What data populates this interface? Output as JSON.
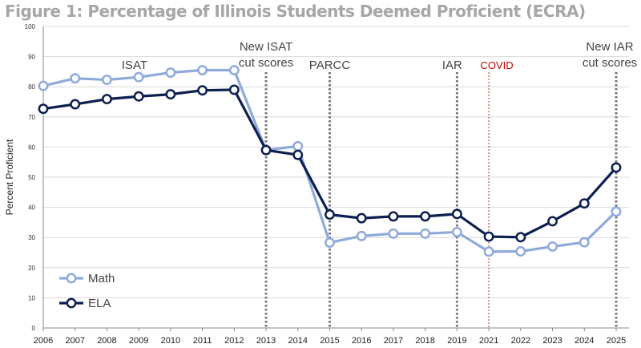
{
  "chart_data": {
    "type": "line",
    "title": "Figure 1: Percentage of Illinois Students Deemed Proficient (ECRA)",
    "xlabel": "",
    "ylabel": "Percent Proficient",
    "ylim": [
      0,
      100
    ],
    "yticks": [
      "0",
      "10",
      "20",
      "30",
      "40",
      "50",
      "60",
      "70",
      "80",
      "90",
      "100"
    ],
    "grid": true,
    "legend_position": "bottom-left",
    "categories": [
      "2006",
      "2007",
      "2008",
      "2009",
      "2010",
      "2011",
      "2012",
      "2013",
      "2014",
      "2015",
      "2016",
      "2017",
      "2018",
      "2019",
      "2021",
      "2022",
      "2023",
      "2024",
      "2025"
    ],
    "series": [
      {
        "name": "Math",
        "color": "#8eaadb",
        "values": [
          80.3,
          82.8,
          82.3,
          83.2,
          84.7,
          85.5,
          85.5,
          59.0,
          60.3,
          28.3,
          30.5,
          31.3,
          31.3,
          31.8,
          25.3,
          25.4,
          27.0,
          28.4,
          38.6
        ]
      },
      {
        "name": "ELA",
        "color": "#0d1f4f",
        "values": [
          72.7,
          74.2,
          75.9,
          76.8,
          77.5,
          78.8,
          79.0,
          59.0,
          57.4,
          37.6,
          36.4,
          37.0,
          37.0,
          37.8,
          30.3,
          30.1,
          35.4,
          41.3,
          53.2
        ]
      }
    ],
    "annotations": [
      {
        "text": "ISAT",
        "at": "2010",
        "lines": false
      },
      {
        "text": [
          "New ISAT",
          "cut scores"
        ],
        "at": "2013",
        "color": "#444444"
      },
      {
        "text": [
          "PARCC"
        ],
        "at": "2015",
        "color": "#444444"
      },
      {
        "text": [
          "IAR"
        ],
        "at": "2019",
        "color": "#444444"
      },
      {
        "text": [
          "COVID"
        ],
        "at": "2021",
        "color": "#c00000"
      },
      {
        "text": [
          "New IAR",
          "cut scores"
        ],
        "at": "2025",
        "color": "#444444"
      }
    ]
  }
}
